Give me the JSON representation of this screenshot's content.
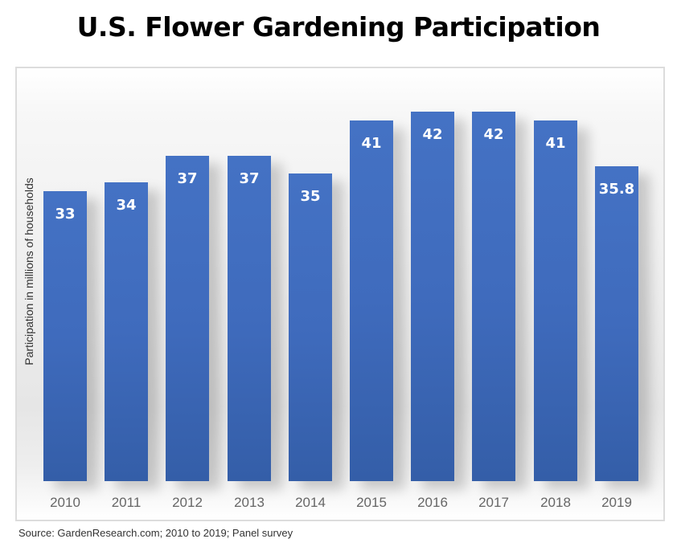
{
  "title": "U.S. Flower Gardening Participation",
  "source": "Source: GardenResearch.com; 2010 to 2019; Panel survey",
  "colors": {
    "bar": "#4472c4",
    "label": "#ffffff",
    "title": "#000000"
  },
  "chart_data": {
    "type": "bar",
    "title": "U.S. Flower Gardening Participation",
    "xlabel": "",
    "ylabel": "Participation in millions of households",
    "categories": [
      "2010",
      "2011",
      "2012",
      "2013",
      "2014",
      "2015",
      "2016",
      "2017",
      "2018",
      "2019"
    ],
    "values": [
      33,
      34,
      37,
      37,
      35,
      41,
      42,
      42,
      41,
      35.8
    ],
    "data_labels": [
      "33",
      "34",
      "37",
      "37",
      "35",
      "41",
      "42",
      "42",
      "41",
      "35.8"
    ],
    "grid": false,
    "legend": null
  }
}
